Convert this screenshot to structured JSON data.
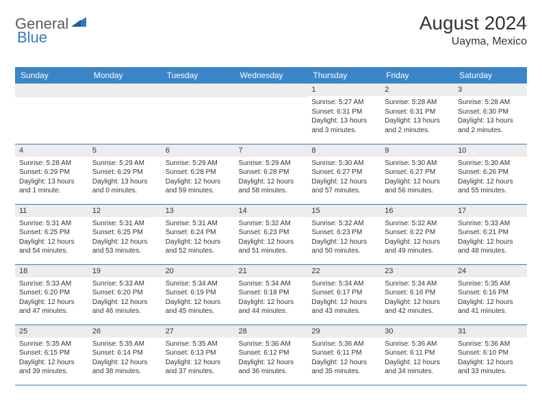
{
  "logo": {
    "text1": "General",
    "text2": "Blue"
  },
  "title": "August 2024",
  "location": "Uayma, Mexico",
  "colors": {
    "header_bg": "#3b86c7",
    "row_divider": "#2f7abf",
    "daynum_bg": "#ececec",
    "text": "#333333",
    "logo_gray": "#5a5a5a",
    "logo_blue": "#2f7abf"
  },
  "day_names": [
    "Sunday",
    "Monday",
    "Tuesday",
    "Wednesday",
    "Thursday",
    "Friday",
    "Saturday"
  ],
  "weeks": [
    [
      null,
      null,
      null,
      null,
      {
        "n": "1",
        "sr": "5:27 AM",
        "ss": "6:31 PM",
        "dl": "13 hours and 3 minutes."
      },
      {
        "n": "2",
        "sr": "5:28 AM",
        "ss": "6:31 PM",
        "dl": "13 hours and 2 minutes."
      },
      {
        "n": "3",
        "sr": "5:28 AM",
        "ss": "6:30 PM",
        "dl": "13 hours and 2 minutes."
      }
    ],
    [
      {
        "n": "4",
        "sr": "5:28 AM",
        "ss": "6:29 PM",
        "dl": "13 hours and 1 minute."
      },
      {
        "n": "5",
        "sr": "5:29 AM",
        "ss": "6:29 PM",
        "dl": "13 hours and 0 minutes."
      },
      {
        "n": "6",
        "sr": "5:29 AM",
        "ss": "6:28 PM",
        "dl": "12 hours and 59 minutes."
      },
      {
        "n": "7",
        "sr": "5:29 AM",
        "ss": "6:28 PM",
        "dl": "12 hours and 58 minutes."
      },
      {
        "n": "8",
        "sr": "5:30 AM",
        "ss": "6:27 PM",
        "dl": "12 hours and 57 minutes."
      },
      {
        "n": "9",
        "sr": "5:30 AM",
        "ss": "6:27 PM",
        "dl": "12 hours and 56 minutes."
      },
      {
        "n": "10",
        "sr": "5:30 AM",
        "ss": "6:26 PM",
        "dl": "12 hours and 55 minutes."
      }
    ],
    [
      {
        "n": "11",
        "sr": "5:31 AM",
        "ss": "6:25 PM",
        "dl": "12 hours and 54 minutes."
      },
      {
        "n": "12",
        "sr": "5:31 AM",
        "ss": "6:25 PM",
        "dl": "12 hours and 53 minutes."
      },
      {
        "n": "13",
        "sr": "5:31 AM",
        "ss": "6:24 PM",
        "dl": "12 hours and 52 minutes."
      },
      {
        "n": "14",
        "sr": "5:32 AM",
        "ss": "6:23 PM",
        "dl": "12 hours and 51 minutes."
      },
      {
        "n": "15",
        "sr": "5:32 AM",
        "ss": "6:23 PM",
        "dl": "12 hours and 50 minutes."
      },
      {
        "n": "16",
        "sr": "5:32 AM",
        "ss": "6:22 PM",
        "dl": "12 hours and 49 minutes."
      },
      {
        "n": "17",
        "sr": "5:33 AM",
        "ss": "6:21 PM",
        "dl": "12 hours and 48 minutes."
      }
    ],
    [
      {
        "n": "18",
        "sr": "5:33 AM",
        "ss": "6:20 PM",
        "dl": "12 hours and 47 minutes."
      },
      {
        "n": "19",
        "sr": "5:33 AM",
        "ss": "6:20 PM",
        "dl": "12 hours and 46 minutes."
      },
      {
        "n": "20",
        "sr": "5:34 AM",
        "ss": "6:19 PM",
        "dl": "12 hours and 45 minutes."
      },
      {
        "n": "21",
        "sr": "5:34 AM",
        "ss": "6:18 PM",
        "dl": "12 hours and 44 minutes."
      },
      {
        "n": "22",
        "sr": "5:34 AM",
        "ss": "6:17 PM",
        "dl": "12 hours and 43 minutes."
      },
      {
        "n": "23",
        "sr": "5:34 AM",
        "ss": "6:16 PM",
        "dl": "12 hours and 42 minutes."
      },
      {
        "n": "24",
        "sr": "5:35 AM",
        "ss": "6:16 PM",
        "dl": "12 hours and 41 minutes."
      }
    ],
    [
      {
        "n": "25",
        "sr": "5:35 AM",
        "ss": "6:15 PM",
        "dl": "12 hours and 39 minutes."
      },
      {
        "n": "26",
        "sr": "5:35 AM",
        "ss": "6:14 PM",
        "dl": "12 hours and 38 minutes."
      },
      {
        "n": "27",
        "sr": "5:35 AM",
        "ss": "6:13 PM",
        "dl": "12 hours and 37 minutes."
      },
      {
        "n": "28",
        "sr": "5:36 AM",
        "ss": "6:12 PM",
        "dl": "12 hours and 36 minutes."
      },
      {
        "n": "29",
        "sr": "5:36 AM",
        "ss": "6:11 PM",
        "dl": "12 hours and 35 minutes."
      },
      {
        "n": "30",
        "sr": "5:36 AM",
        "ss": "6:11 PM",
        "dl": "12 hours and 34 minutes."
      },
      {
        "n": "31",
        "sr": "5:36 AM",
        "ss": "6:10 PM",
        "dl": "12 hours and 33 minutes."
      }
    ]
  ],
  "labels": {
    "sunrise": "Sunrise:",
    "sunset": "Sunset:",
    "daylight": "Daylight:"
  }
}
